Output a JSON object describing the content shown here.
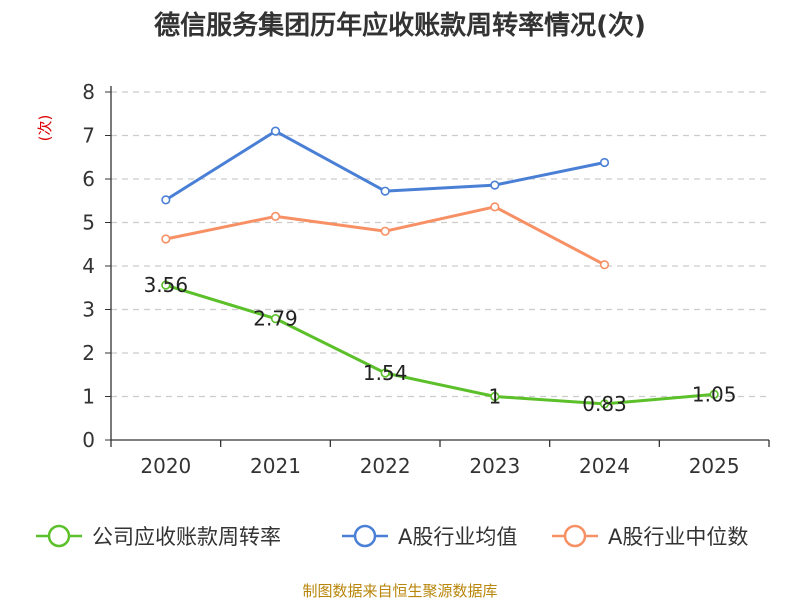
{
  "colors": {
    "series_company": "#5cc02a",
    "series_average": "#4a7fd6",
    "series_median": "#f79064",
    "axis_label": "#dd0000",
    "source": "#b8860b",
    "grid": "#cccccc",
    "axis": "#333333"
  },
  "source_text": "制图数据来自恒生聚源数据库",
  "chart_data": {
    "type": "line",
    "title": "德信服务集团历年应收账款周转率情况(次)",
    "xlabel": "",
    "ylabel": "(次)",
    "categories": [
      "2020",
      "2021",
      "2022",
      "2023",
      "2024",
      "2025"
    ],
    "yticks": [
      "0",
      "1",
      "2",
      "3",
      "4",
      "5",
      "6",
      "7",
      "8"
    ],
    "ylim": [
      0,
      8
    ],
    "grid": true,
    "legend_position": "bottom",
    "series": [
      {
        "name": "公司应收账款周转率",
        "color": "#5cc02a",
        "values": [
          3.56,
          2.79,
          1.54,
          1,
          0.83,
          1.05
        ],
        "labels": [
          "3.56",
          "2.79",
          "1.54",
          "1",
          "0.83",
          "1.05"
        ],
        "show_labels": true
      },
      {
        "name": "A股行业均值",
        "color": "#4a7fd6",
        "values": [
          5.52,
          7.1,
          5.72,
          5.86,
          6.38,
          null
        ],
        "show_labels": false
      },
      {
        "name": "A股行业中位数",
        "color": "#f79064",
        "values": [
          4.62,
          5.14,
          4.8,
          5.36,
          4.03,
          null
        ],
        "show_labels": false
      }
    ]
  }
}
